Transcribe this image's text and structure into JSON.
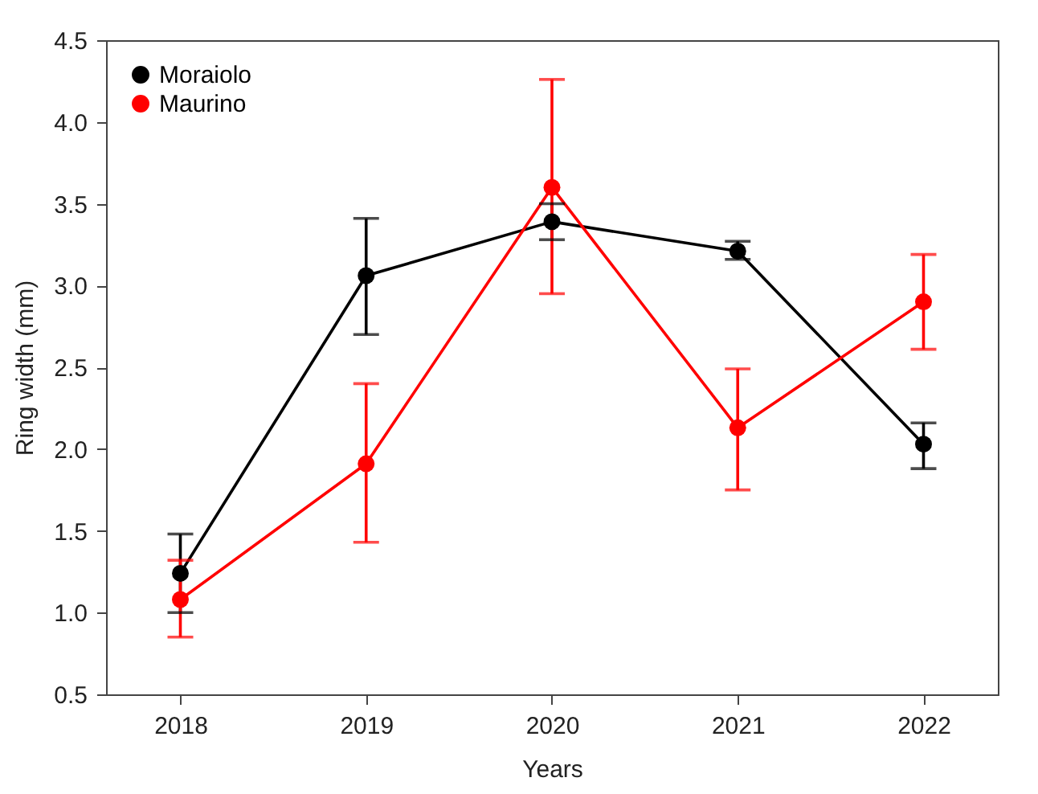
{
  "chart_data": {
    "type": "line",
    "xlabel": "Years",
    "ylabel": "Ring width (mm)",
    "categories": [
      "2018",
      "2019",
      "2020",
      "2021",
      "2022"
    ],
    "ylim": [
      0.5,
      4.5
    ],
    "yticks": [
      0.5,
      {
        "value": 1,
        "label": "1.0"
      },
      1.5,
      {
        "value": 2,
        "label": "2.0"
      },
      2.5,
      {
        "value": 3,
        "label": "3.0"
      },
      3.5,
      {
        "value": 4,
        "label": "4.0"
      },
      4.5
    ],
    "grid": false,
    "legend": "top left",
    "marker": "circle",
    "line_style": "solid",
    "series": [
      {
        "name": "Moraiolo",
        "color": "#000000",
        "values": [
          1.24,
          3.06,
          3.39,
          3.21,
          2.03
        ],
        "errors": [
          [
            1.0,
            1.48
          ],
          [
            2.7,
            3.41
          ],
          [
            3.28,
            3.5
          ],
          [
            3.16,
            3.27
          ],
          [
            1.88,
            2.16
          ]
        ]
      },
      {
        "name": "Maurino",
        "color": "#ff0000",
        "values": [
          1.08,
          1.91,
          3.6,
          2.13,
          2.9
        ],
        "errors": [
          [
            0.85,
            1.32
          ],
          [
            1.43,
            2.4
          ],
          [
            2.95,
            4.26
          ],
          [
            1.75,
            2.49
          ],
          [
            2.61,
            3.19
          ]
        ]
      }
    ]
  }
}
